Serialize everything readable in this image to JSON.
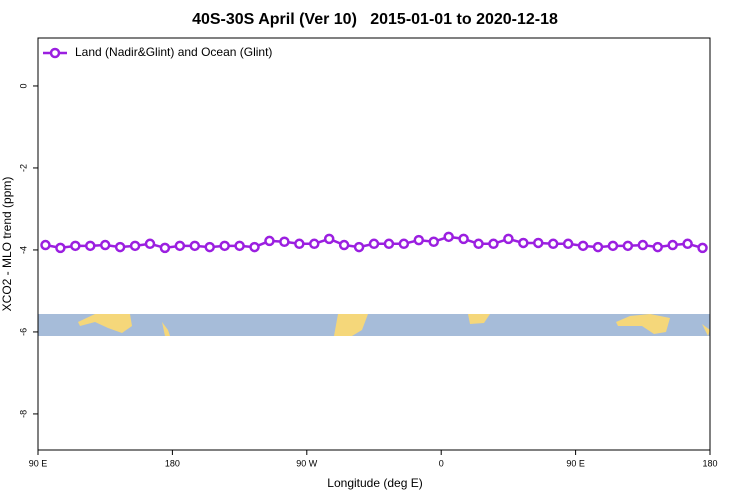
{
  "chart_data": {
    "type": "line",
    "title": "40S-30S April (Ver 10)   2015-01-01 to 2020-12-18",
    "xlabel": "Longitude (deg E)",
    "ylabel": "XCO2 - MLO trend (ppm)",
    "x": [
      95,
      105,
      115,
      125,
      135,
      145,
      155,
      165,
      175,
      185,
      195,
      205,
      215,
      225,
      235,
      245,
      255,
      265,
      275,
      285,
      295,
      305,
      315,
      325,
      335,
      345,
      355,
      365,
      375,
      385,
      395,
      405,
      415,
      425,
      435,
      445,
      455,
      465,
      475,
      485,
      495,
      505,
      515,
      525,
      535
    ],
    "series": [
      {
        "name": "Land (Nadir&Glint) and Ocean (Glint)",
        "color": "#9b1fe0",
        "values": [
          -3.88,
          -3.95,
          -3.9,
          -3.9,
          -3.88,
          -3.93,
          -3.9,
          -3.85,
          -3.95,
          -3.9,
          -3.9,
          -3.93,
          -3.9,
          -3.9,
          -3.93,
          -3.78,
          -3.8,
          -3.85,
          -3.85,
          -3.73,
          -3.88,
          -3.93,
          -3.85,
          -3.85,
          -3.85,
          -3.76,
          -3.8,
          -3.68,
          -3.73,
          -3.85,
          -3.85,
          -3.73,
          -3.83,
          -3.83,
          -3.85,
          -3.85,
          -3.9,
          -3.93,
          -3.9,
          -3.9,
          -3.88,
          -3.93,
          -3.88,
          -3.85,
          -3.95
        ]
      }
    ],
    "xlim": [
      90,
      540
    ],
    "xticks": [
      {
        "value": 90,
        "label": "90 E"
      },
      {
        "value": 180,
        "label": "180"
      },
      {
        "value": 270,
        "label": "90 W"
      },
      {
        "value": 360,
        "label": "0"
      },
      {
        "value": 450,
        "label": "90 E"
      },
      {
        "value": 540,
        "label": "180"
      }
    ],
    "ylim": [
      -8.88,
      1.17
    ],
    "yticks": [
      0,
      -2,
      -4,
      -6,
      -8
    ],
    "legend": "top-left"
  }
}
